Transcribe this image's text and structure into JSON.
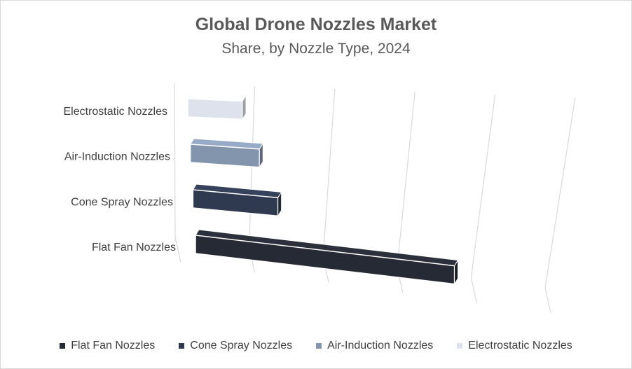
{
  "chart_data": {
    "type": "bar",
    "orientation": "horizontal",
    "style": "3d",
    "title": "Global Drone Nozzles Market",
    "subtitle": "Share, by Nozzle Type, 2024",
    "categories": [
      "Flat Fan Nozzles",
      "Cone Spray Nozzles",
      "Air-Induction Nozzles",
      "Electrostatic Nozzles"
    ],
    "values": [
      42,
      13,
      10,
      7.5
    ],
    "xlim": [
      0,
      50
    ],
    "grid": true,
    "value_axis_labels": false,
    "legend_position": "bottom",
    "colors": [
      "#252a34",
      "#2f394f",
      "#8394ad",
      "#dde2ec"
    ]
  }
}
